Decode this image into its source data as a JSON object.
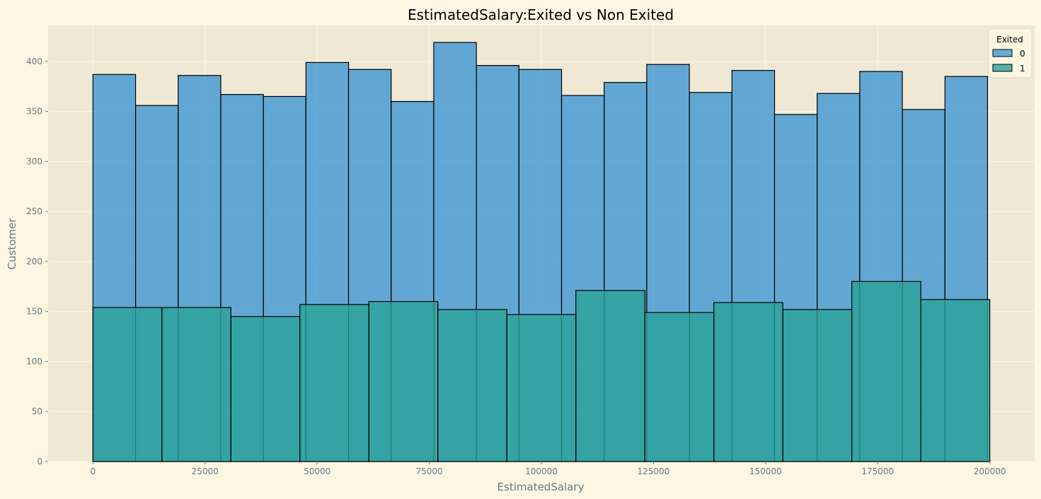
{
  "chart_data": {
    "type": "bar",
    "subtype": "overlapping-histogram",
    "title": "EstimatedSalary:Exited vs Non Exited",
    "xlabel": "EstimatedSalary",
    "ylabel": "Customer",
    "xlim": [
      -10000,
      210000
    ],
    "ylim": [
      0,
      436
    ],
    "xticks": [
      0,
      25000,
      50000,
      75000,
      100000,
      125000,
      150000,
      175000,
      200000
    ],
    "yticks": [
      0,
      50,
      100,
      150,
      200,
      250,
      300,
      350,
      400
    ],
    "grid": true,
    "legend": {
      "title": "Exited",
      "position": "top-right"
    },
    "colors": {
      "background": "#fdf6e3",
      "plot_background": "#eee8d5",
      "grid": "#fdf6e3",
      "edge": "#000000",
      "text": "#657b83"
    },
    "series": [
      {
        "name": "0",
        "color": "#268bd2",
        "opacity": 0.7,
        "bin_start": 0,
        "bin_width": 9500,
        "values": [
          387,
          356,
          386,
          367,
          365,
          399,
          392,
          360,
          419,
          396,
          392,
          366,
          379,
          397,
          369,
          391,
          347,
          368,
          390,
          352,
          385
        ]
      },
      {
        "name": "1",
        "color": "#2aa198",
        "opacity": 0.8,
        "bin_start": 0,
        "bin_width": 15384.6,
        "values": [
          154,
          154,
          145,
          157,
          160,
          152,
          147,
          171,
          149,
          159,
          152,
          180,
          162
        ]
      }
    ]
  }
}
